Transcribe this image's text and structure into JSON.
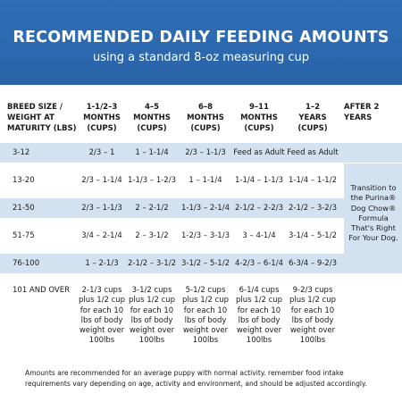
{
  "header": {
    "title": "RECOMMENDED DAILY FEEDING AMOUNTS",
    "subtitle": "using a standard 8-oz measuring cup"
  },
  "table": {
    "columns": [
      "BREED SIZE /\nWEIGHT AT\nMATURITY (LBS)",
      "1-1/2–3\nMONTHS\n(CUPS)",
      "4–5\nMONTHS\n(CUPS)",
      "6–8\nMONTHS\n(CUPS)",
      "9–11\nMONTHS\n(CUPS)",
      "1–2\nYEARS\n(CUPS)",
      "AFTER 2\nYEARS"
    ],
    "rows": [
      [
        "3-12",
        "2/3 – 1",
        "1 – 1-1/4",
        "2/3 – 1-1/3",
        "Feed as Adult",
        "Feed as Adult"
      ],
      [
        "13-20",
        "2/3 – 1-1/4",
        "1-1/3 – 1-2/3",
        "1 – 1-1/4",
        "1-1/4 – 1-1/3",
        "1-1/4 – 1-1/2"
      ],
      [
        "21-50",
        "2/3 – 1-1/3",
        "2 – 2-1/2",
        "1-1/3 – 2-1/4",
        "2-1/2 – 2-2/3",
        "2-1/2 – 3-2/3"
      ],
      [
        "51-75",
        "3/4 – 2-1/4",
        "2 – 3-1/2",
        "1-2/3 – 3-1/3",
        "3 – 4-1/4",
        "3-1/4 – 5-1/2"
      ],
      [
        "76-100",
        "1 – 2-1/3",
        "2-1/2 – 3-1/2",
        "3-1/2 – 5-1/2",
        "4-2/3 – 6-1/4",
        "6-3/4 – 9-2/3"
      ],
      [
        "101 AND OVER",
        "2-1/3 cups\nplus 1/2 cup\nfor each 10\nlbs of body\nweight over\n100lbs",
        "3-1/2 cups\nplus 1/2 cup\nfor each 10\nlbs of body\nweight over\n100lbs",
        "5-1/2 cups\nplus 1/2 cup\nfor each 10\nlbs of body\nweight over\n100lbs",
        "6-1/4 cups\nplus 1/2 cup\nfor each 10\nlbs of body\nweight over\n100lbs",
        "9-2/3 cups\nplus 1/2 cup\nfor each 10\nlbs of body\nweight over\n100lbs"
      ]
    ],
    "transition_note": "Transition to\nthe Purina®\nDog Chow®\nFormula\nThat's Right\nFor Your Dog."
  },
  "footnote": "Amounts are recommended for an average puppy with normal activity. remember food intake\nrequirements vary depending on age, activity and environment, and should be adjusted accordingly."
}
